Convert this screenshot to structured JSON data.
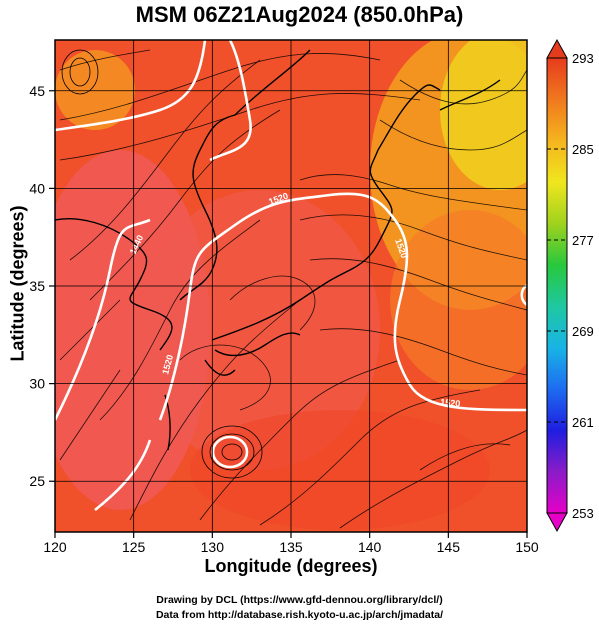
{
  "chart_data": {
    "type": "heatmap",
    "title": "MSM 06Z21Aug2024 (850.0hPa)",
    "xlabel": "Longitude (degrees)",
    "ylabel": "Latitude  (degrees)",
    "xlim": [
      120,
      150
    ],
    "ylim": [
      22.4,
      47.6
    ],
    "xticks": [
      120,
      125,
      130,
      135,
      140,
      145,
      150
    ],
    "yticks": [
      25,
      30,
      35,
      40,
      45
    ],
    "grid": true,
    "colorbar": {
      "min": 253,
      "max": 293,
      "ticks": [
        253,
        261,
        269,
        277,
        285,
        293
      ],
      "colors": [
        "#e600c8",
        "#8a1cc8",
        "#1e1ee0",
        "#1e6cf0",
        "#18b4e6",
        "#1ec8a0",
        "#28c83c",
        "#a0d21e",
        "#f0e61e",
        "#f5b41e",
        "#f0781e",
        "#e63c1e"
      ]
    },
    "contour_labels": [
      "1440",
      "1520",
      "1520",
      "1520",
      "1520"
    ],
    "overlay": "streamlines (wind) and coastlines"
  },
  "credits": {
    "line1": "Drawing by DCL (https://www.gfd-dennou.org/library/dcl/)",
    "line2": "Data from http://database.rish.kyoto-u.ac.jp/arch/jmadata/"
  }
}
